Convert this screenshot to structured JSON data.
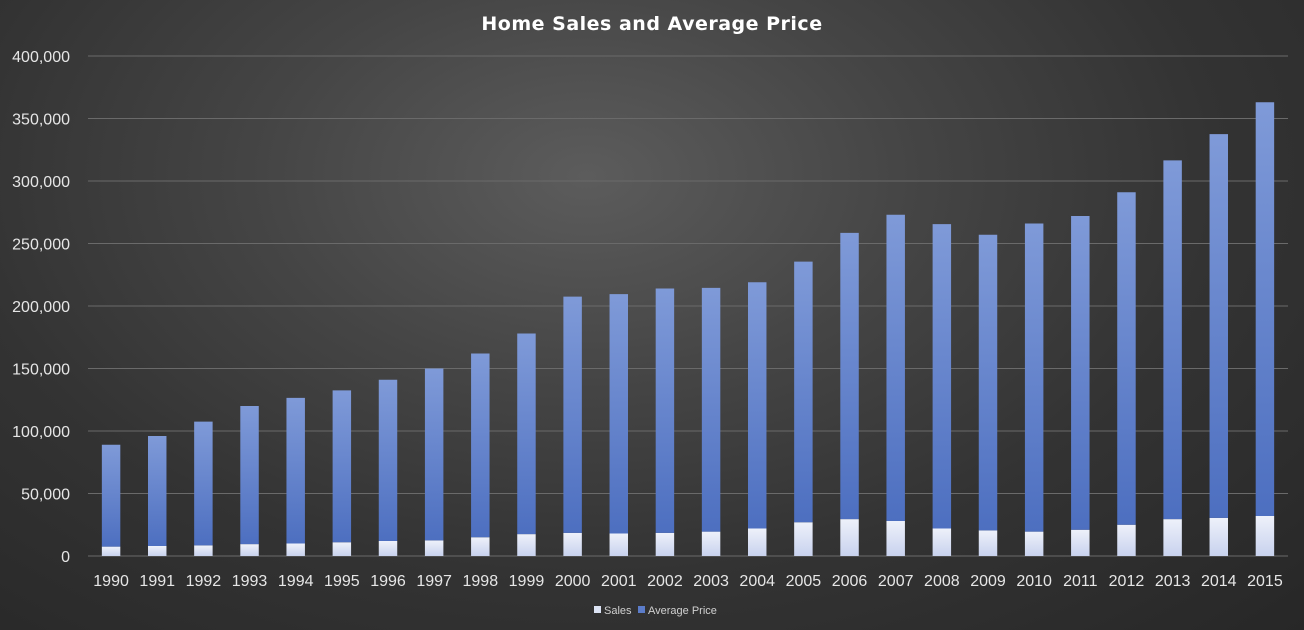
{
  "chart_data": {
    "type": "bar",
    "stacked": true,
    "title": "Home Sales and Average Price",
    "xlabel": "",
    "ylabel": "",
    "categories": [
      "1990",
      "1991",
      "1992",
      "1993",
      "1994",
      "1995",
      "1996",
      "1997",
      "1998",
      "1999",
      "2000",
      "2001",
      "2002",
      "2003",
      "2004",
      "2005",
      "2006",
      "2007",
      "2008",
      "2009",
      "2010",
      "2011",
      "2012",
      "2013",
      "2014",
      "2015"
    ],
    "series": [
      {
        "name": "Sales",
        "color": "#dce3f4",
        "values": [
          7500,
          8000,
          8500,
          9500,
          10000,
          11000,
          12000,
          12500,
          15000,
          17500,
          18500,
          18000,
          18500,
          19500,
          22000,
          27000,
          29500,
          28000,
          22000,
          20500,
          19500,
          21000,
          25000,
          29500,
          30500,
          32000
        ]
      },
      {
        "name": "Average Price",
        "color": "#5b7cc9",
        "values": [
          81500,
          88000,
          99000,
          110500,
          116500,
          121500,
          129000,
          137500,
          147000,
          160500,
          189000,
          191500,
          195500,
          195000,
          197000,
          208500,
          229000,
          245000,
          243500,
          236500,
          246500,
          251000,
          266000,
          287000,
          307000,
          331000
        ]
      }
    ],
    "ylim": [
      0,
      400000
    ],
    "yticks": [
      "0",
      "50,000",
      "100,000",
      "150,000",
      "200,000",
      "250,000",
      "300,000",
      "350,000",
      "400,000"
    ],
    "grid": true,
    "legend_position": "bottom"
  }
}
